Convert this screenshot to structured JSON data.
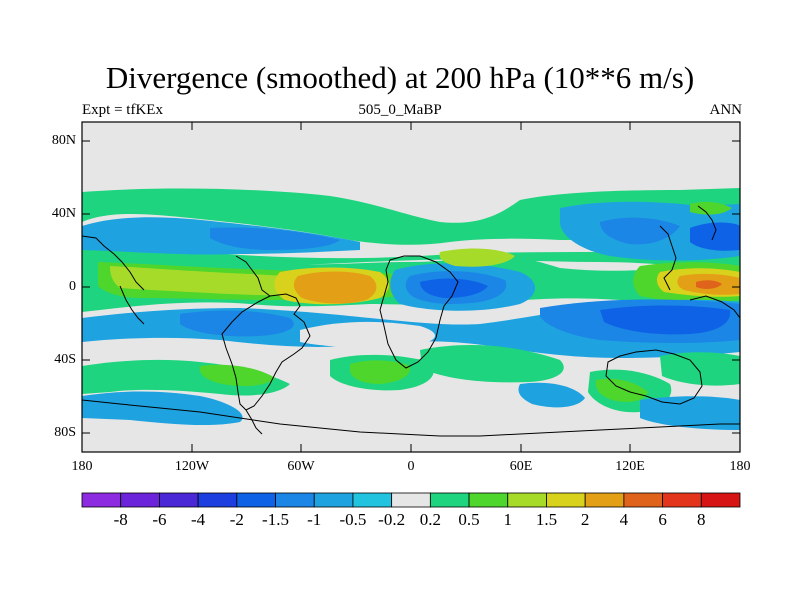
{
  "title": "Divergence (smoothed) at 200 hPa (10**6 m/s)",
  "left_label": "Expt = tfKEx",
  "center_label": "505_0_MaBP",
  "right_label": "ANN",
  "y_ticks": [
    "80N",
    "40N",
    "0",
    "40S",
    "80S"
  ],
  "x_ticks": [
    "180",
    "120W",
    "60W",
    "0",
    "60E",
    "120E",
    "180"
  ],
  "colorbar": {
    "colors": [
      "#8c2be0",
      "#6b24d9",
      "#4a28d6",
      "#1e3fe0",
      "#0e62e6",
      "#1b86e6",
      "#1ea3e0",
      "#21c3df",
      "#e6e6e6",
      "#1fd47f",
      "#4fd62c",
      "#a7db2a",
      "#d9d21c",
      "#e3a017",
      "#e0631b",
      "#e3351b",
      "#d61414"
    ],
    "labels": [
      "-8",
      "-6",
      "-4",
      "-2",
      "-1.5",
      "-1",
      "-0.5",
      "-0.2",
      "0.2",
      "0.5",
      "1",
      "1.5",
      "2",
      "4",
      "6",
      "8"
    ]
  },
  "colors": {
    "background": "#e6e6e6",
    "frame": "#000000",
    "coastline": "#000000"
  }
}
